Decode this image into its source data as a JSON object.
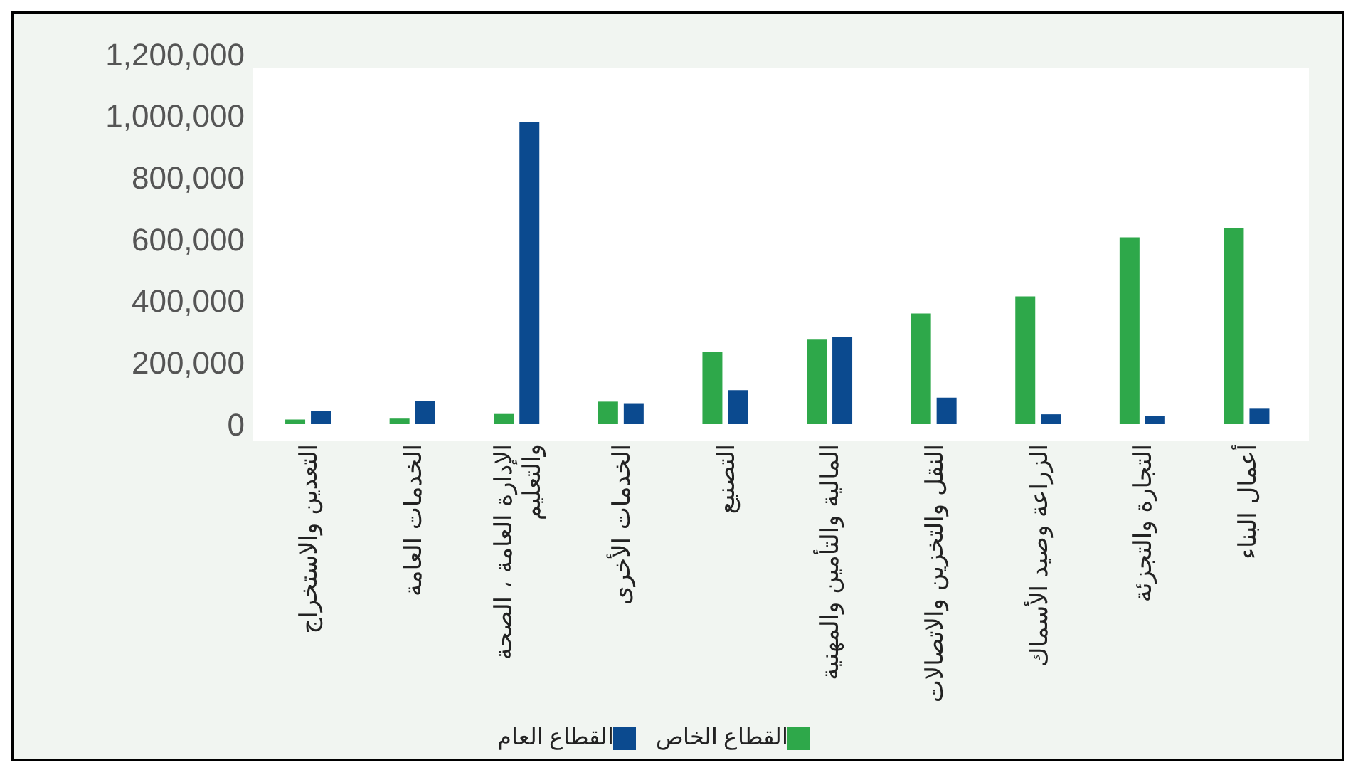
{
  "chart_data": {
    "type": "bar",
    "categories": [
      "التعدين والاستخراج",
      "الخدمات العامة",
      "الإدارة العامة ، الصحة والتعليم",
      "الخدمات الأخرى",
      "التصنيع",
      "المالية والتأمين والمهنية",
      "النقل والتخزين والاتصالات",
      "الزراعة وصيد الأسماك",
      "التجارة والتجزئة",
      "أعمال البناء"
    ],
    "series": [
      {
        "name": "القطاع الخاص",
        "color": "#2ea84a",
        "values": [
          15000,
          18000,
          33000,
          73000,
          235000,
          274000,
          359000,
          414000,
          606000,
          635000
        ]
      },
      {
        "name": "القطاع العام",
        "color": "#0b4a8f",
        "values": [
          42000,
          74000,
          979000,
          68000,
          110000,
          283000,
          86000,
          32000,
          26000,
          50000
        ]
      }
    ],
    "ylim": [
      0,
      1200000
    ],
    "yticks": [
      0,
      {
        "value": 200000,
        "label": "200,000"
      },
      {
        "value": 400000,
        "label": "400,000"
      },
      {
        "value": 600000,
        "label": "600,000"
      },
      {
        "value": 800000,
        "label": "800,000"
      },
      {
        "value": 1000000,
        "label": "1,000,000"
      },
      {
        "value": 1200000,
        "label": "1,200,000"
      }
    ],
    "grid": false,
    "legend": "bottom"
  }
}
